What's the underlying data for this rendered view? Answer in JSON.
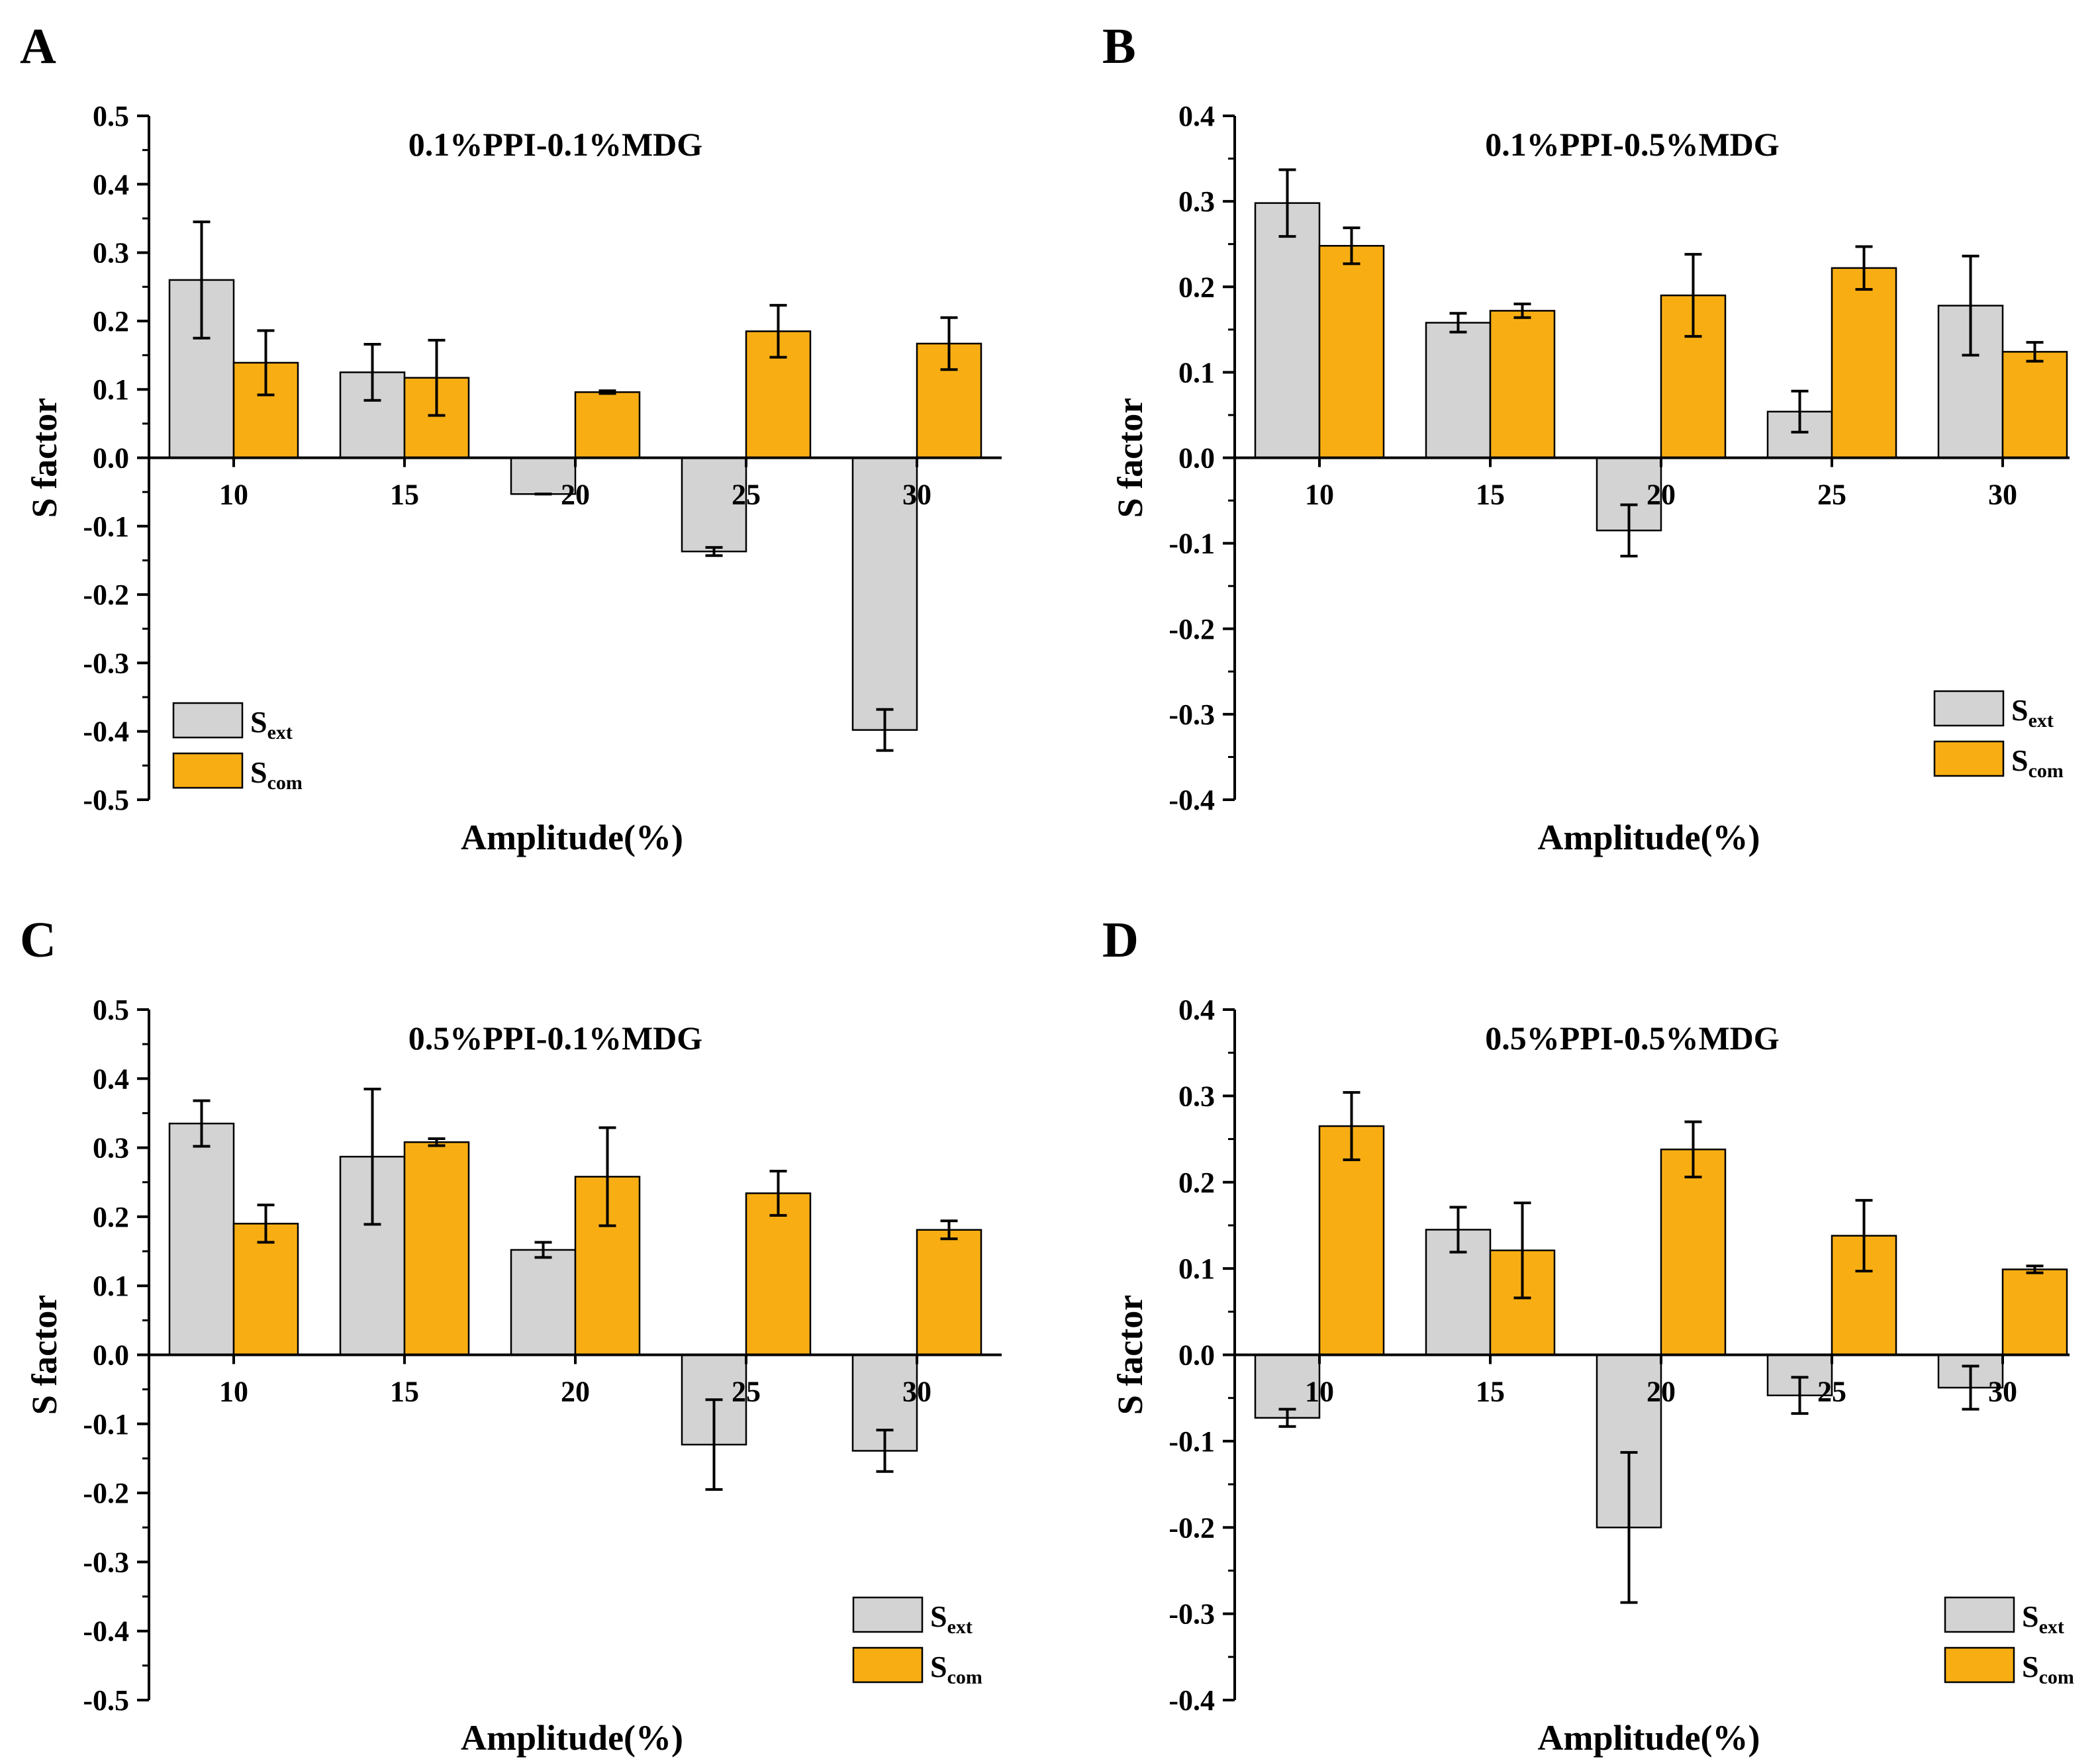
{
  "colors": {
    "ext": "#d3d3d3",
    "com": "#f8ae13",
    "stroke": "#000000"
  },
  "chart_data": [
    {
      "type": "bar",
      "panel_label": "A",
      "title": "0.1%PPI-0.1%MDG",
      "xlabel": "Amplitude(%)",
      "ylabel": "S factor",
      "ylim": [
        -0.5,
        0.5
      ],
      "y_ticks": [
        "-0.5",
        "-0.4",
        "-0.3",
        "-0.2",
        "-0.1",
        "0.0",
        "0.1",
        "0.2",
        "0.3",
        "0.4",
        "0.5"
      ],
      "categories": [
        "10",
        "15",
        "20",
        "25",
        "30"
      ],
      "legend_position": "bottom-left",
      "series": [
        {
          "name": "ext",
          "label": "S",
          "sub": "ext",
          "values": [
            0.26,
            0.125,
            -0.053,
            -0.137,
            -0.398
          ],
          "errors": [
            0.085,
            0.041,
            0.0,
            0.006,
            0.03
          ]
        },
        {
          "name": "com",
          "label": "S",
          "sub": "com",
          "values": [
            0.139,
            0.117,
            0.096,
            0.185,
            0.167
          ],
          "errors": [
            0.047,
            0.055,
            0.002,
            0.038,
            0.038
          ]
        }
      ]
    },
    {
      "type": "bar",
      "panel_label": "B",
      "title": "0.1%PPI-0.5%MDG",
      "xlabel": "Amplitude(%)",
      "ylabel": "S factor",
      "ylim": [
        -0.4,
        0.4
      ],
      "y_ticks": [
        "-0.4",
        "-0.3",
        "-0.2",
        "-0.1",
        "0.0",
        "0.1",
        "0.2",
        "0.3",
        "0.4"
      ],
      "categories": [
        "10",
        "15",
        "20",
        "25",
        "30"
      ],
      "legend_position": "bottom-right",
      "series": [
        {
          "name": "ext",
          "label": "S",
          "sub": "ext",
          "values": [
            0.298,
            0.158,
            -0.085,
            0.054,
            0.178
          ],
          "errors": [
            0.039,
            0.011,
            0.03,
            0.024,
            0.058
          ]
        },
        {
          "name": "com",
          "label": "S",
          "sub": "com",
          "values": [
            0.248,
            0.172,
            0.19,
            0.222,
            0.124
          ],
          "errors": [
            0.021,
            0.008,
            0.048,
            0.025,
            0.011
          ]
        }
      ]
    },
    {
      "type": "bar",
      "panel_label": "C",
      "title": "0.5%PPI-0.1%MDG",
      "xlabel": "Amplitude(%)",
      "ylabel": "S factor",
      "ylim": [
        -0.5,
        0.5
      ],
      "y_ticks": [
        "-0.5",
        "-0.4",
        "-0.3",
        "-0.2",
        "-0.1",
        "0.0",
        "0.1",
        "0.2",
        "0.3",
        "0.4",
        "0.5"
      ],
      "categories": [
        "10",
        "15",
        "20",
        "25",
        "30"
      ],
      "legend_position": "bottom-right",
      "series": [
        {
          "name": "ext",
          "label": "S",
          "sub": "ext",
          "values": [
            0.335,
            0.287,
            0.152,
            -0.13,
            -0.139
          ],
          "errors": [
            0.033,
            0.098,
            0.011,
            0.065,
            0.03
          ]
        },
        {
          "name": "com",
          "label": "S",
          "sub": "com",
          "values": [
            0.19,
            0.308,
            0.258,
            0.234,
            0.181
          ],
          "errors": [
            0.027,
            0.005,
            0.071,
            0.032,
            0.013
          ]
        }
      ]
    },
    {
      "type": "bar",
      "panel_label": "D",
      "title": "0.5%PPI-0.5%MDG",
      "xlabel": "Amplitude(%)",
      "ylabel": "S factor",
      "ylim": [
        -0.4,
        0.4
      ],
      "y_ticks": [
        "-0.4",
        "-0.3",
        "-0.2",
        "-0.1",
        "0.0",
        "0.1",
        "0.2",
        "0.3",
        "0.4"
      ],
      "categories": [
        "10",
        "15",
        "20",
        "25",
        "30"
      ],
      "legend_position": "bottom-right",
      "series": [
        {
          "name": "ext",
          "label": "S",
          "sub": "ext",
          "values": [
            -0.073,
            0.145,
            -0.2,
            -0.047,
            -0.038
          ],
          "errors": [
            0.01,
            0.026,
            0.087,
            0.021,
            0.025
          ]
        },
        {
          "name": "com",
          "label": "S",
          "sub": "com",
          "values": [
            0.265,
            0.121,
            0.238,
            0.138,
            0.099
          ],
          "errors": [
            0.039,
            0.055,
            0.032,
            0.041,
            0.004
          ]
        }
      ]
    }
  ]
}
